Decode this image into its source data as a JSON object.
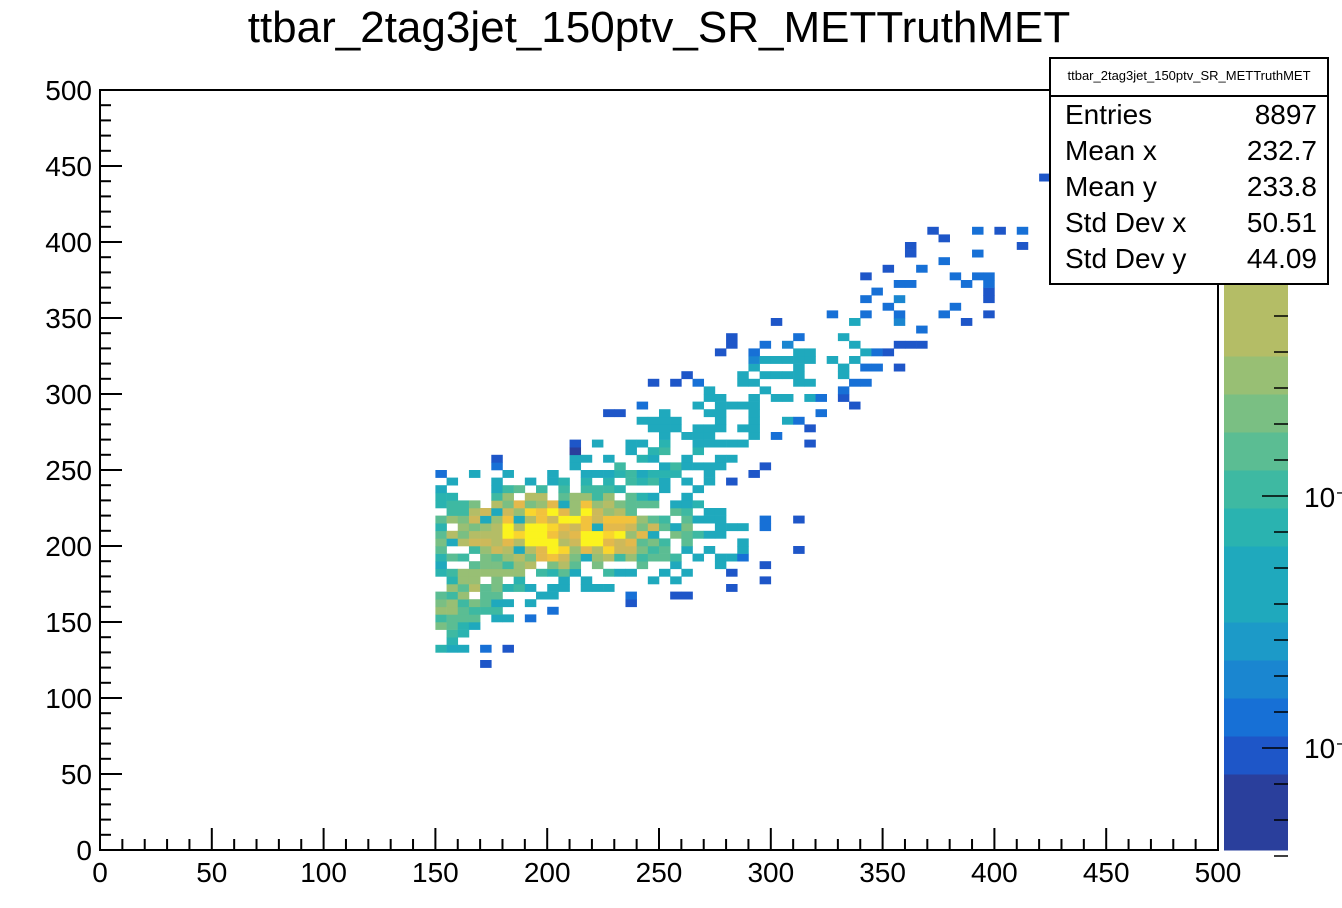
{
  "title": "ttbar_2tag3jet_150ptv_SR_METTruthMET",
  "stats": {
    "header": "ttbar_2tag3jet_150ptv_SR_METTruthMET",
    "rows": [
      {
        "label": "Entries",
        "value": "8897"
      },
      {
        "label": "Mean x",
        "value": "232.7"
      },
      {
        "label": "Mean y",
        "value": "233.8"
      },
      {
        "label": "Std Dev x",
        "value": "50.51"
      },
      {
        "label": "Std Dev y",
        "value": "44.09"
      }
    ]
  },
  "chart_data": {
    "type": "heatmap",
    "title": "ttbar_2tag3jet_150ptv_SR_METTruthMET",
    "xlabel": "",
    "ylabel": "",
    "xlim": [
      0,
      500
    ],
    "ylim": [
      0,
      500
    ],
    "xticks": [
      "0",
      "50",
      "100",
      "150",
      "200",
      "250",
      "300",
      "350",
      "400",
      "450",
      "500"
    ],
    "yticks": [
      "0",
      "50",
      "100",
      "150",
      "200",
      "250",
      "300",
      "350",
      "400",
      "450",
      "500"
    ],
    "zscale": "log",
    "colorbar_tick_labels": [
      "10⁻",
      "10⁻"
    ],
    "entries": 8897,
    "mean_x": 232.7,
    "mean_y": 233.8,
    "std_x": 50.51,
    "std_y": 44.09,
    "palette": [
      "#2a3f9c",
      "#1e56c8",
      "#1770d6",
      "#1a86d0",
      "#1c9ac8",
      "#1fa9bd",
      "#2ab3b0",
      "#3eb9a2",
      "#5bbd93",
      "#7abf83",
      "#98bf74",
      "#b4bd66",
      "#cdb95a",
      "#e3b94c",
      "#f2c23d",
      "#f9d52e",
      "#fbf31e"
    ],
    "clusters": [
      {
        "x": 150,
        "y": 195,
        "level": 0.55
      },
      {
        "x": 200,
        "y": 210,
        "level": 1.0
      },
      {
        "x": 215,
        "y": 215,
        "level": 0.95
      },
      {
        "x": 235,
        "y": 225,
        "level": 0.85
      },
      {
        "x": 255,
        "y": 240,
        "level": 0.7
      },
      {
        "x": 280,
        "y": 270,
        "level": 0.5
      },
      {
        "x": 310,
        "y": 300,
        "level": 0.4
      },
      {
        "x": 345,
        "y": 345,
        "level": 0.35
      },
      {
        "x": 380,
        "y": 380,
        "level": 0.25
      },
      {
        "x": 420,
        "y": 410,
        "level": 0.2
      }
    ]
  }
}
